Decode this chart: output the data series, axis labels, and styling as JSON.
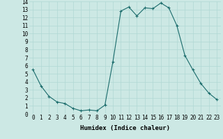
{
  "x": [
    0,
    1,
    2,
    3,
    4,
    5,
    6,
    7,
    8,
    9,
    10,
    11,
    12,
    13,
    14,
    15,
    16,
    17,
    18,
    19,
    20,
    21,
    22,
    23
  ],
  "y": [
    5.5,
    3.5,
    2.2,
    1.5,
    1.3,
    0.7,
    0.4,
    0.5,
    0.4,
    1.1,
    6.5,
    12.8,
    13.3,
    12.2,
    13.2,
    13.1,
    13.8,
    13.2,
    11.0,
    7.3,
    5.5,
    3.8,
    2.6,
    1.8
  ],
  "line_color": "#1a6b6b",
  "marker": "+",
  "marker_size": 3,
  "marker_lw": 0.8,
  "bg_color": "#cce8e4",
  "grid_color": "#b0d8d4",
  "xlabel": "Humidex (Indice chaleur)",
  "xlim": [
    -0.5,
    23.5
  ],
  "ylim": [
    0,
    14
  ],
  "xticks": [
    0,
    1,
    2,
    3,
    4,
    5,
    6,
    7,
    8,
    9,
    10,
    11,
    12,
    13,
    14,
    15,
    16,
    17,
    18,
    19,
    20,
    21,
    22,
    23
  ],
  "yticks": [
    0,
    1,
    2,
    3,
    4,
    5,
    6,
    7,
    8,
    9,
    10,
    11,
    12,
    13,
    14
  ],
  "xlabel_fontsize": 6.5,
  "tick_fontsize": 5.5,
  "linewidth": 0.8
}
